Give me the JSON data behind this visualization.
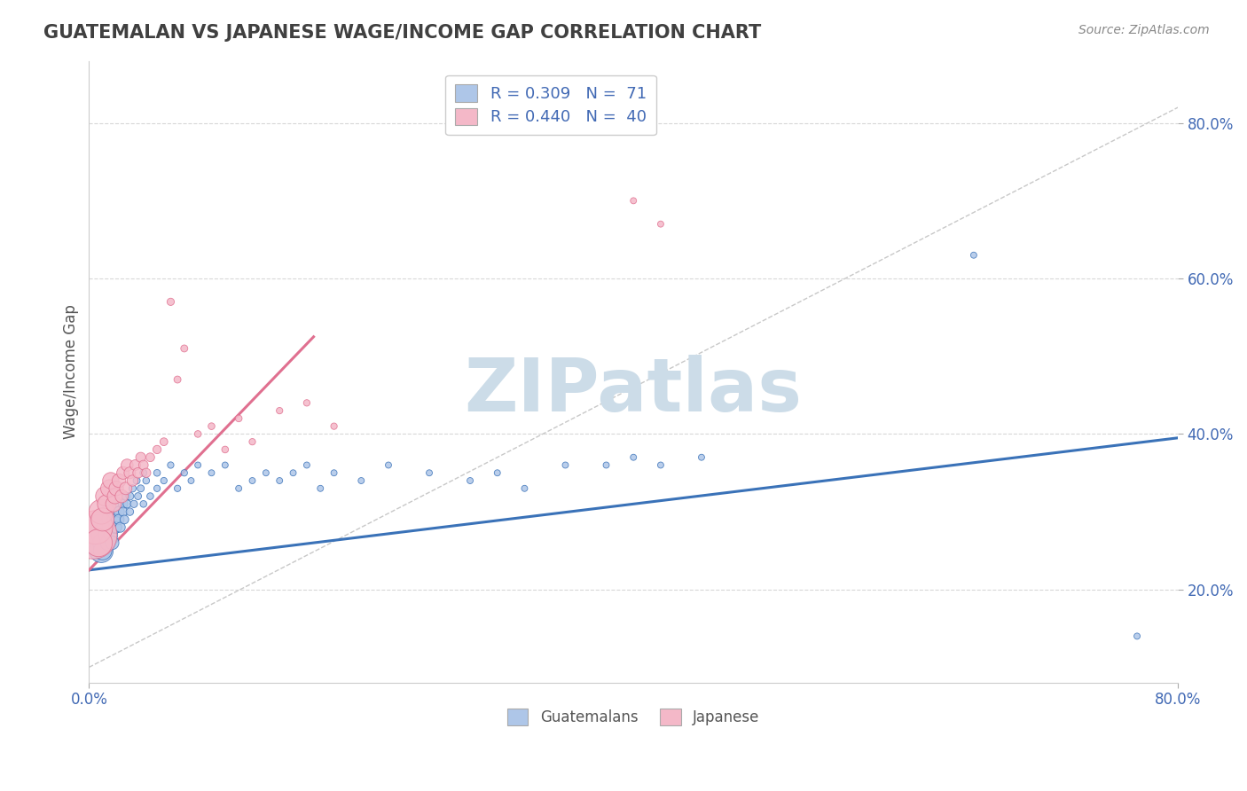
{
  "title": "GUATEMALAN VS JAPANESE WAGE/INCOME GAP CORRELATION CHART",
  "source": "Source: ZipAtlas.com",
  "ylabel": "Wage/Income Gap",
  "xmin": 0.0,
  "xmax": 0.8,
  "ymin": 0.08,
  "ymax": 0.88,
  "guatemalan_color": "#aec6e8",
  "japanese_color": "#f4b8c8",
  "guatemalan_line_color": "#3a72b8",
  "japanese_line_color": "#e07090",
  "ref_line_color": "#c8c8c8",
  "watermark": "ZIPatlas",
  "watermark_color": "#ccdce8",
  "guatemalan_scatter_x": [
    0.005,
    0.007,
    0.008,
    0.009,
    0.01,
    0.01,
    0.01,
    0.012,
    0.013,
    0.014,
    0.015,
    0.015,
    0.016,
    0.017,
    0.018,
    0.018,
    0.019,
    0.02,
    0.02,
    0.02,
    0.021,
    0.022,
    0.022,
    0.023,
    0.025,
    0.025,
    0.026,
    0.027,
    0.028,
    0.03,
    0.03,
    0.032,
    0.033,
    0.035,
    0.036,
    0.038,
    0.04,
    0.04,
    0.042,
    0.045,
    0.05,
    0.05,
    0.055,
    0.06,
    0.065,
    0.07,
    0.075,
    0.08,
    0.09,
    0.1,
    0.11,
    0.12,
    0.13,
    0.14,
    0.15,
    0.16,
    0.17,
    0.18,
    0.2,
    0.22,
    0.25,
    0.28,
    0.3,
    0.32,
    0.35,
    0.38,
    0.4,
    0.42,
    0.45,
    0.65,
    0.77
  ],
  "guatemalan_scatter_y": [
    0.27,
    0.26,
    0.28,
    0.25,
    0.27,
    0.26,
    0.25,
    0.28,
    0.27,
    0.26,
    0.29,
    0.28,
    0.27,
    0.26,
    0.3,
    0.29,
    0.28,
    0.3,
    0.29,
    0.28,
    0.31,
    0.3,
    0.29,
    0.28,
    0.31,
    0.3,
    0.29,
    0.32,
    0.31,
    0.32,
    0.3,
    0.33,
    0.31,
    0.34,
    0.32,
    0.33,
    0.35,
    0.31,
    0.34,
    0.32,
    0.35,
    0.33,
    0.34,
    0.36,
    0.33,
    0.35,
    0.34,
    0.36,
    0.35,
    0.36,
    0.33,
    0.34,
    0.35,
    0.34,
    0.35,
    0.36,
    0.33,
    0.35,
    0.34,
    0.36,
    0.35,
    0.34,
    0.35,
    0.33,
    0.36,
    0.36,
    0.37,
    0.36,
    0.37,
    0.63,
    0.14
  ],
  "guatemalan_scatter_size": [
    400,
    200,
    180,
    150,
    130,
    100,
    90,
    80,
    70,
    65,
    60,
    55,
    50,
    48,
    45,
    42,
    40,
    38,
    36,
    34,
    32,
    30,
    28,
    26,
    24,
    22,
    20,
    18,
    17,
    16,
    15,
    14,
    14,
    13,
    13,
    13,
    13,
    12,
    12,
    12,
    12,
    11,
    11,
    11,
    11,
    11,
    10,
    10,
    10,
    10,
    10,
    10,
    10,
    10,
    10,
    10,
    10,
    10,
    10,
    10,
    10,
    10,
    10,
    10,
    10,
    10,
    10,
    10,
    10,
    10,
    10
  ],
  "japanese_scatter_x": [
    0.003,
    0.005,
    0.007,
    0.009,
    0.01,
    0.012,
    0.013,
    0.015,
    0.016,
    0.018,
    0.019,
    0.02,
    0.022,
    0.024,
    0.025,
    0.027,
    0.028,
    0.03,
    0.032,
    0.034,
    0.036,
    0.038,
    0.04,
    0.042,
    0.045,
    0.05,
    0.055,
    0.06,
    0.065,
    0.07,
    0.08,
    0.09,
    0.1,
    0.11,
    0.12,
    0.14,
    0.16,
    0.18,
    0.4,
    0.42
  ],
  "japanese_scatter_y": [
    0.27,
    0.28,
    0.26,
    0.3,
    0.29,
    0.32,
    0.31,
    0.33,
    0.34,
    0.31,
    0.32,
    0.33,
    0.34,
    0.32,
    0.35,
    0.33,
    0.36,
    0.35,
    0.34,
    0.36,
    0.35,
    0.37,
    0.36,
    0.35,
    0.37,
    0.38,
    0.39,
    0.57,
    0.47,
    0.51,
    0.4,
    0.41,
    0.38,
    0.42,
    0.39,
    0.43,
    0.44,
    0.41,
    0.7,
    0.67
  ],
  "japanese_scatter_size": [
    600,
    300,
    200,
    160,
    140,
    100,
    90,
    80,
    70,
    65,
    60,
    55,
    50,
    45,
    42,
    40,
    38,
    35,
    32,
    30,
    28,
    26,
    24,
    22,
    20,
    18,
    16,
    14,
    13,
    13,
    12,
    12,
    12,
    12,
    11,
    11,
    11,
    11,
    10,
    10
  ],
  "guatemalan_line_x": [
    0.0,
    0.8
  ],
  "guatemalan_line_y": [
    0.225,
    0.395
  ],
  "japanese_line_x": [
    0.0,
    0.165
  ],
  "japanese_line_y": [
    0.225,
    0.525
  ],
  "ref_line_x": [
    0.0,
    0.8
  ],
  "ref_line_y": [
    0.1,
    0.82
  ],
  "background_color": "#ffffff",
  "grid_color": "#d8d8d8",
  "title_color": "#404040",
  "tick_color": "#4169b4",
  "ytick_positions": [
    0.2,
    0.4,
    0.6,
    0.8
  ],
  "ytick_labels": [
    "20.0%",
    "40.0%",
    "60.0%",
    "80.0%"
  ]
}
